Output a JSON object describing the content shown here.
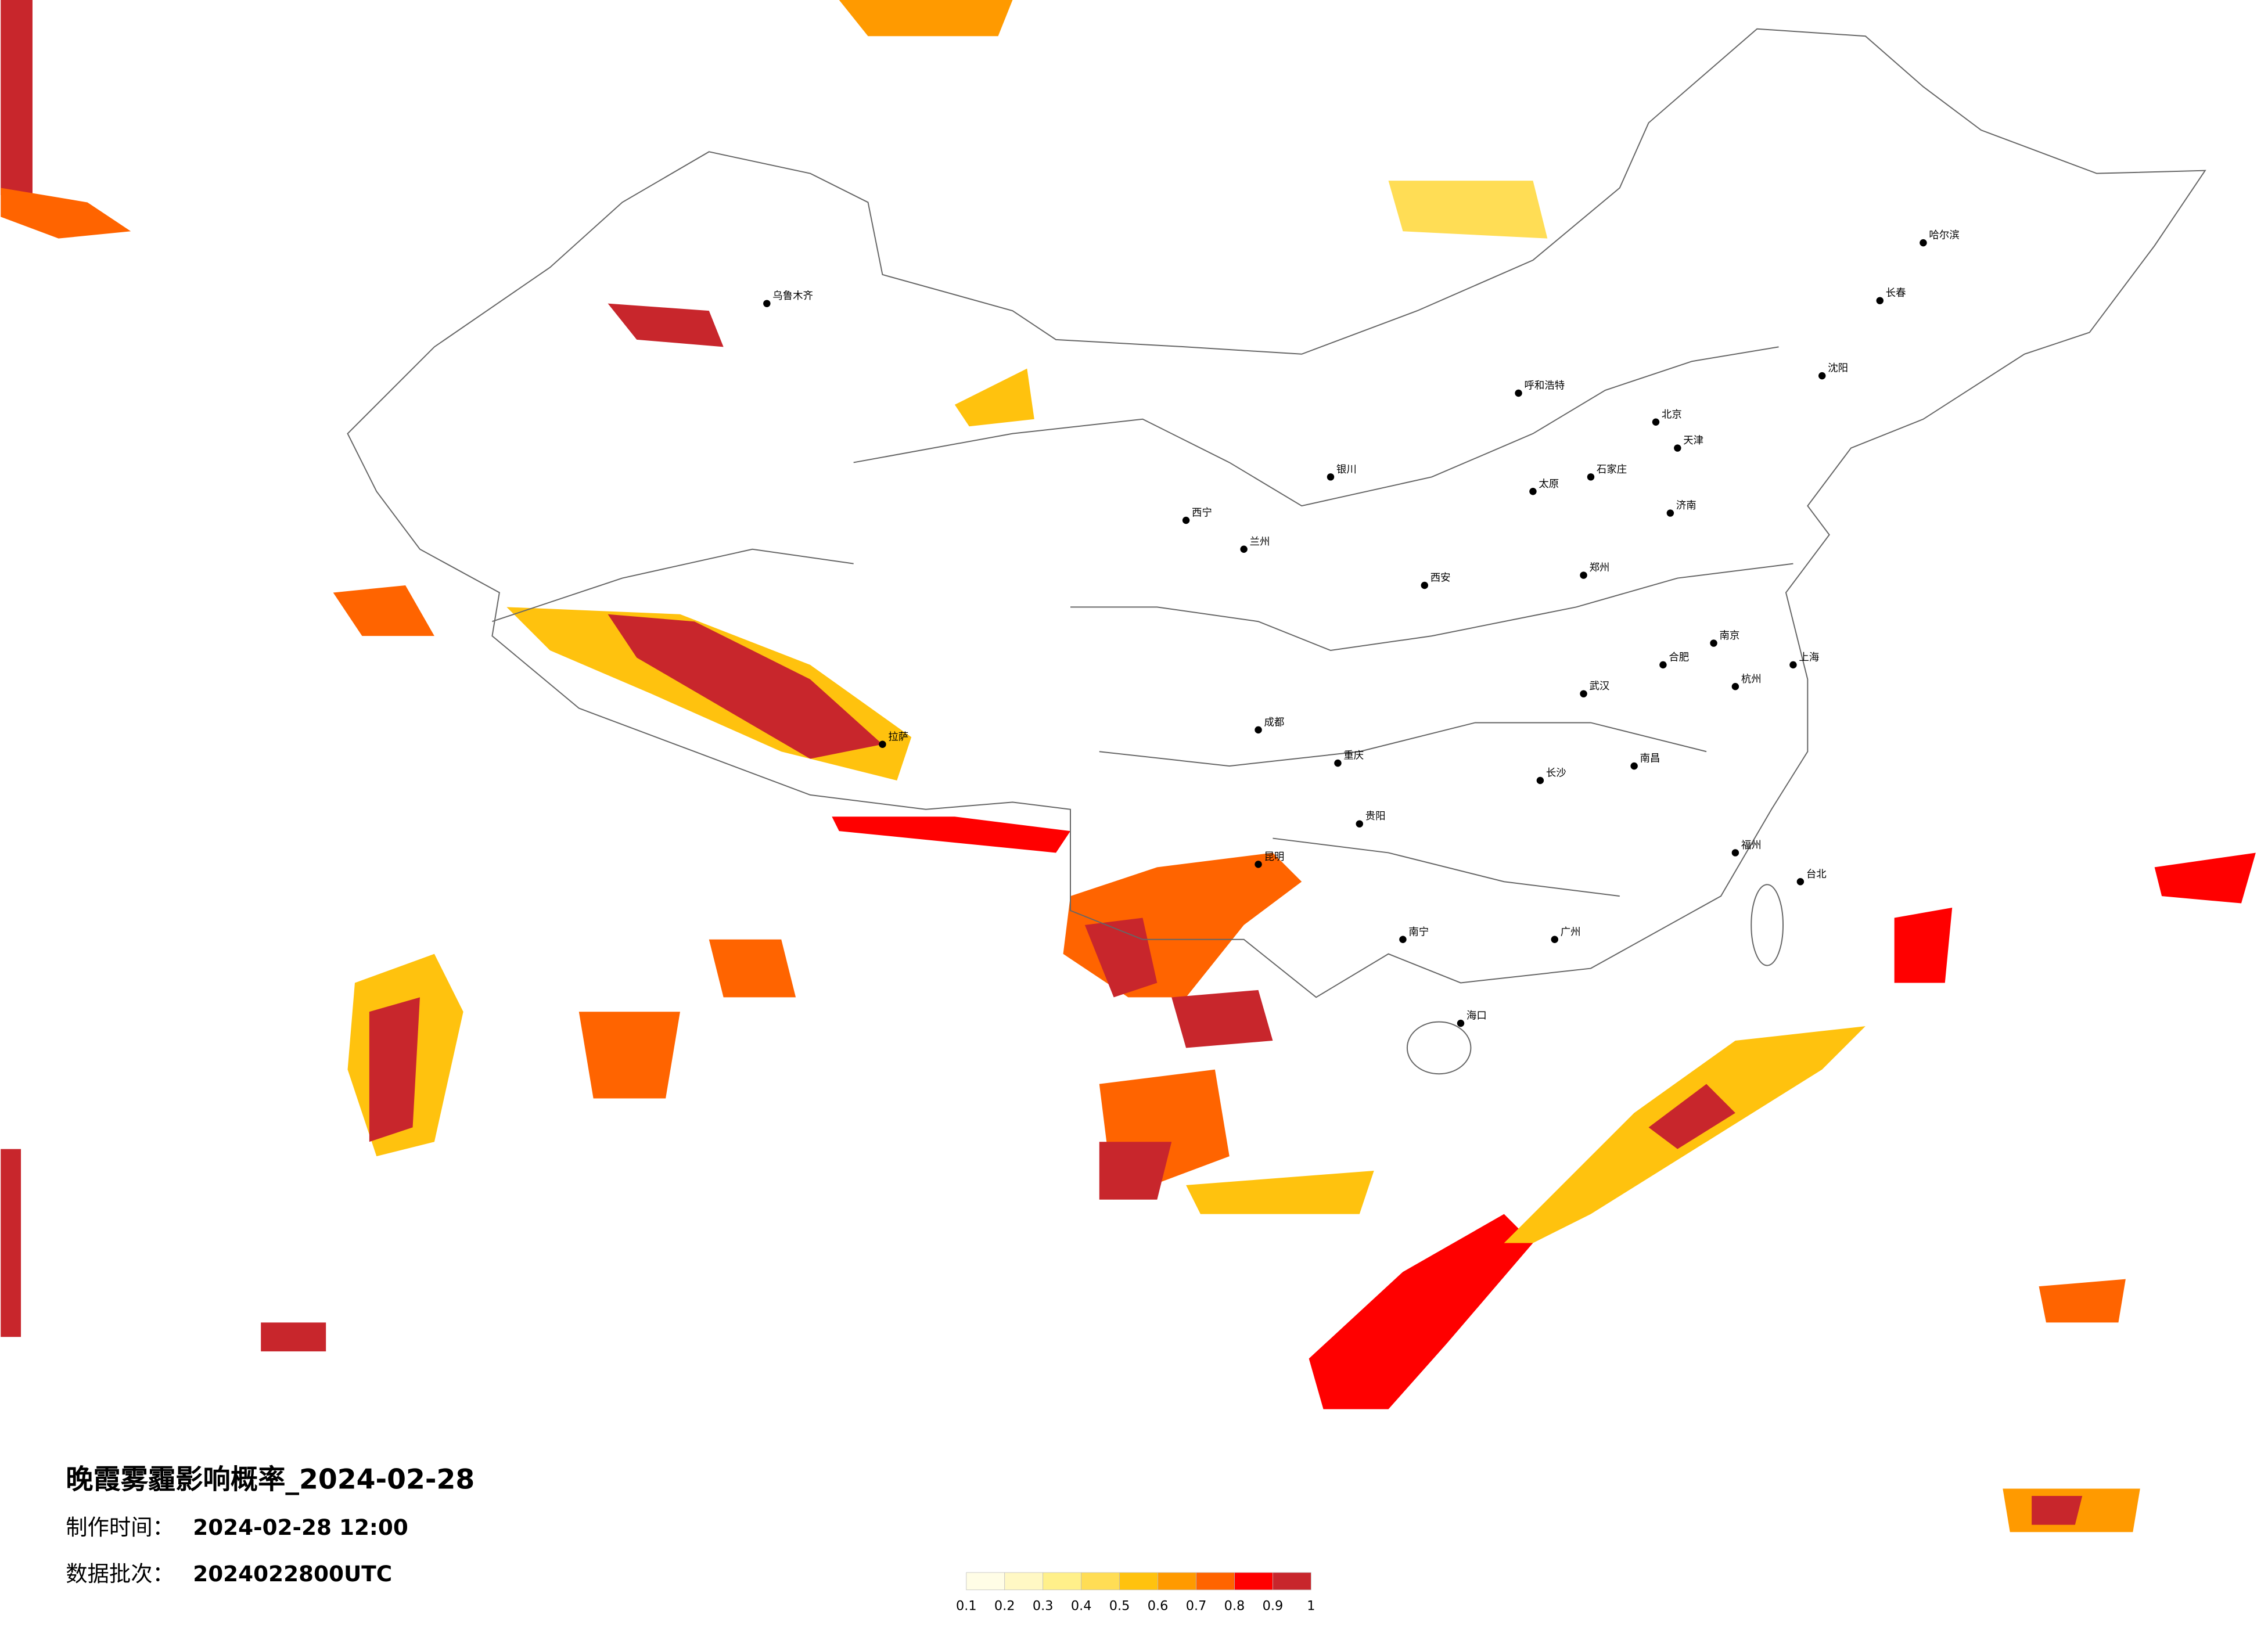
{
  "title": "晚霞雾霾影响概率_2024-02-28",
  "info": [
    {
      "label": "制作时间：",
      "value": "2024-02-28 12:00"
    },
    {
      "label": "数据批次：",
      "value": "2024022800UTC"
    }
  ],
  "legend": {
    "ticks": [
      0.1,
      0.2,
      0.3,
      0.4,
      0.5,
      0.6,
      0.7,
      0.8,
      0.9,
      1
    ],
    "colors": [
      "#fffde6",
      "#fff8c4",
      "#fff08a",
      "#ffdd55",
      "#ffc20e",
      "#ff9a00",
      "#ff6400",
      "#ff0000",
      "#c8262c"
    ]
  },
  "cities": [
    "北京",
    "天津",
    "石家庄",
    "太原",
    "呼和浩特",
    "济南",
    "郑州",
    "西安",
    "兰州",
    "西宁",
    "银川",
    "乌鲁木齐",
    "拉萨",
    "成都",
    "重庆",
    "贵阳",
    "昆明",
    "南宁",
    "海口",
    "广州",
    "长沙",
    "武汉",
    "南昌",
    "福州",
    "杭州",
    "上海",
    "南京",
    "合肥",
    "沈阳",
    "长春",
    "哈尔滨",
    "台北"
  ]
}
